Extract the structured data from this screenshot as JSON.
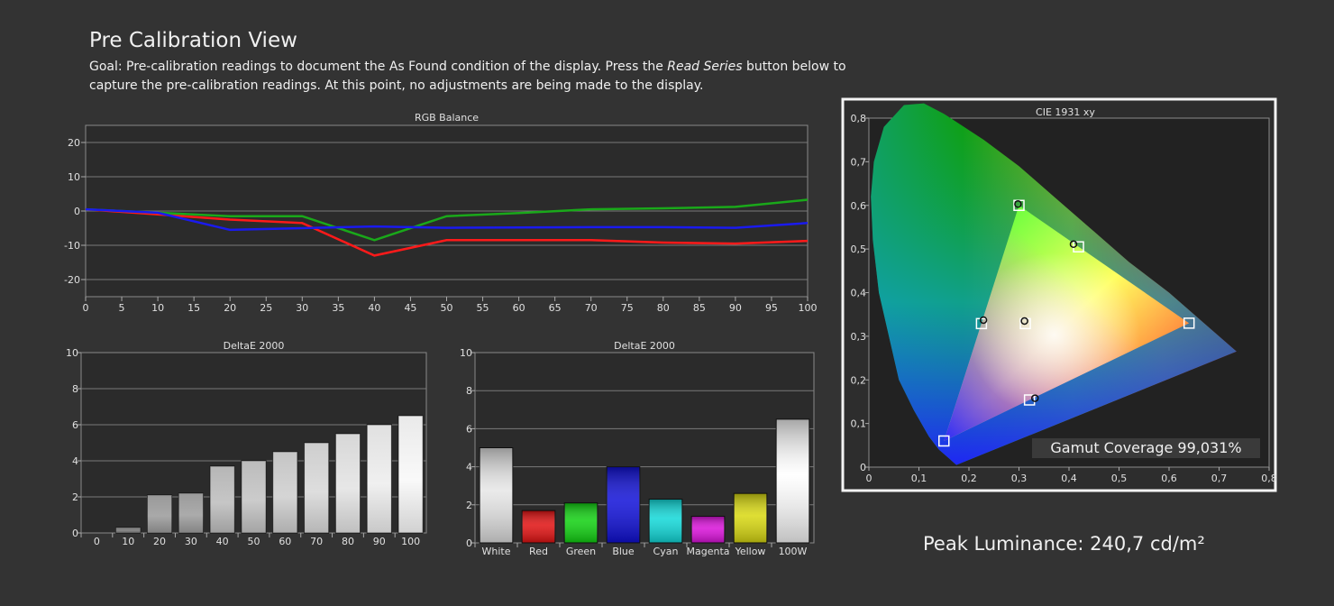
{
  "page": {
    "title": "Pre Calibration View",
    "goal_before": "Goal: Pre-calibration readings to document the As Found condition of the display. Press the ",
    "goal_em": "Read Series",
    "goal_after": " button below to capture the pre-calibration readings. At this point, no adjustments are being made to the display.",
    "peak_luminance": "Peak Luminance: 240,7 cd/m²",
    "gamut_coverage": "Gamut Coverage 99,031%"
  },
  "chart_data": [
    {
      "type": "line",
      "title": "RGB Balance",
      "x": [
        0,
        10,
        20,
        30,
        40,
        50,
        60,
        70,
        80,
        90,
        100
      ],
      "x_ticks": [
        "0",
        "5",
        "10",
        "15",
        "20",
        "25",
        "30",
        "35",
        "40",
        "45",
        "50",
        "55",
        "60",
        "65",
        "70",
        "75",
        "80",
        "85",
        "90",
        "95",
        "100"
      ],
      "y_ticks": [
        "20",
        "10",
        "0",
        "-10",
        "-20"
      ],
      "ylim": [
        -25,
        25
      ],
      "xlim": [
        0,
        100
      ],
      "series": [
        {
          "color": "#ff1a1a",
          "values": [
            0.5,
            -1,
            -2.5,
            -3.5,
            -13,
            -8.5,
            -8.5,
            -8.5,
            -9.2,
            -9.5,
            -8.7
          ]
        },
        {
          "color": "#1aa81a",
          "values": [
            0.5,
            -0.5,
            -1.5,
            -1.5,
            -8.5,
            -1.5,
            -0.6,
            0.5,
            0.8,
            1.2,
            3.3
          ]
        },
        {
          "color": "#1a1aee",
          "values": [
            0.5,
            -0.5,
            -5.5,
            -5,
            -4.5,
            -4.9,
            -4.8,
            -4.7,
            -4.7,
            -4.9,
            -3.5
          ]
        }
      ]
    },
    {
      "type": "bar",
      "title": "DeltaE 2000",
      "categories": [
        "0",
        "10",
        "20",
        "30",
        "40",
        "50",
        "60",
        "70",
        "80",
        "90",
        "100"
      ],
      "values": [
        0,
        0.3,
        2.1,
        2.2,
        3.7,
        4.0,
        4.5,
        5.0,
        5.5,
        6.0,
        6.5
      ],
      "ylim": [
        0,
        10
      ],
      "y_ticks": [
        "10",
        "8",
        "6",
        "4",
        "2",
        "0"
      ]
    },
    {
      "type": "bar",
      "title": "DeltaE 2000",
      "categories": [
        "White",
        "Red",
        "Green",
        "Blue",
        "Cyan",
        "Magenta",
        "Yellow",
        "100W"
      ],
      "values": [
        5.0,
        1.7,
        2.1,
        4.0,
        2.3,
        1.4,
        2.6,
        6.5
      ],
      "colors": [
        "#e6e6e6",
        "#e01010",
        "#10d010",
        "#1010d8",
        "#10d8d8",
        "#d810d8",
        "#d8d810",
        "#ffffff"
      ],
      "ylim": [
        0,
        10
      ],
      "y_ticks": [
        "10",
        "8",
        "6",
        "4",
        "2",
        "0"
      ]
    },
    {
      "type": "scatter",
      "title": "CIE 1931 xy",
      "xlim": [
        0,
        0.8
      ],
      "ylim": [
        0,
        0.8
      ],
      "x_ticks": [
        "0",
        "0,1",
        "0,2",
        "0,3",
        "0,4",
        "0,5",
        "0,6",
        "0,7",
        "0,8"
      ],
      "y_ticks": [
        "0,8",
        "0,7",
        "0,6",
        "0,5",
        "0,4",
        "0,3",
        "0,2",
        "0,1",
        "0"
      ],
      "targets": [
        {
          "x": 0.64,
          "y": 0.33
        },
        {
          "x": 0.3,
          "y": 0.6
        },
        {
          "x": 0.15,
          "y": 0.06
        },
        {
          "x": 0.225,
          "y": 0.329
        },
        {
          "x": 0.321,
          "y": 0.154
        },
        {
          "x": 0.419,
          "y": 0.505
        },
        {
          "x": 0.3127,
          "y": 0.329
        }
      ],
      "measured": [
        {
          "x": 0.298,
          "y": 0.603
        },
        {
          "x": 0.229,
          "y": 0.337
        },
        {
          "x": 0.332,
          "y": 0.158
        },
        {
          "x": 0.409,
          "y": 0.511
        },
        {
          "x": 0.311,
          "y": 0.335
        }
      ]
    }
  ]
}
